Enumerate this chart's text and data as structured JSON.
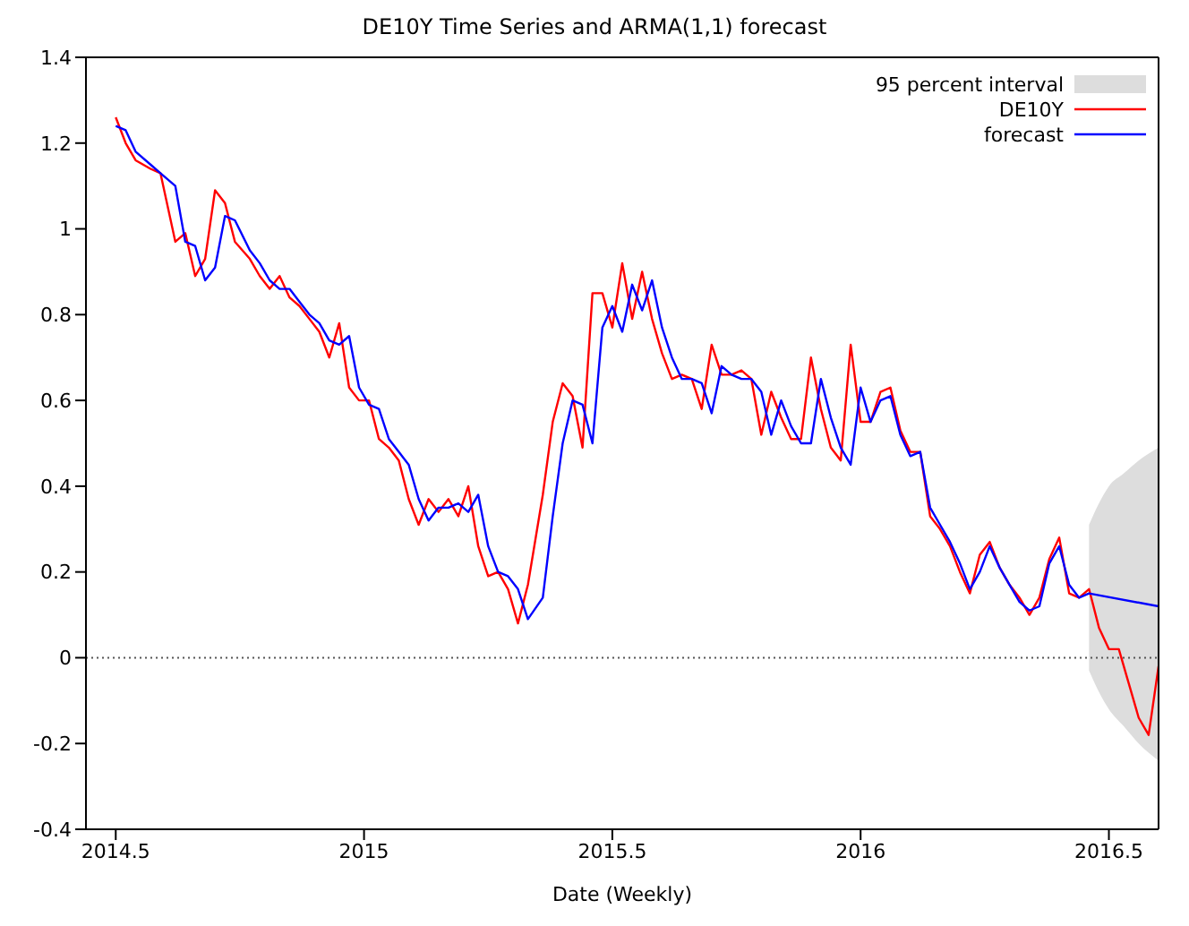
{
  "chart_data": {
    "type": "line",
    "title": "DE10Y Time Series and ARMA(1,1) forecast",
    "xlabel": "Date (Weekly)",
    "xlim": [
      2014.44,
      2016.6
    ],
    "xticks": [
      2014.5,
      2015,
      2015.5,
      2016,
      2016.5
    ],
    "ylim": [
      -0.4,
      1.4
    ],
    "yticks": [
      -0.4,
      -0.2,
      0,
      0.2,
      0.4,
      0.6,
      0.8,
      1,
      1.2,
      1.4
    ],
    "grid": false,
    "legend": "top right",
    "marker": "none",
    "line_style": "solid",
    "ref_lines": [
      {
        "axis": "y",
        "value": 0,
        "color": "#555555",
        "line_style": "dotted"
      }
    ],
    "series": [
      {
        "name": "95 percent interval",
        "type": "area",
        "color": "#dddddd",
        "x": [
          2016.46,
          2016.48,
          2016.5,
          2016.53,
          2016.56,
          2016.6
        ],
        "values": [
          null,
          null,
          null,
          null,
          null,
          null
        ],
        "lower": [
          -0.03,
          -0.08,
          -0.12,
          -0.16,
          -0.2,
          -0.24
        ],
        "upper": [
          0.31,
          0.36,
          0.4,
          0.43,
          0.46,
          0.49
        ]
      },
      {
        "name": "DE10Y",
        "type": "line",
        "color": "#ff0000",
        "x": [
          2014.5,
          2014.52,
          2014.54,
          2014.57,
          2014.59,
          2014.62,
          2014.64,
          2014.66,
          2014.68,
          2014.7,
          2014.72,
          2014.74,
          2014.77,
          2014.79,
          2014.81,
          2014.83,
          2014.85,
          2014.87,
          2014.89,
          2014.91,
          2014.93,
          2014.95,
          2014.97,
          2014.99,
          2015.01,
          2015.03,
          2015.05,
          2015.07,
          2015.09,
          2015.11,
          2015.13,
          2015.15,
          2015.17,
          2015.19,
          2015.21,
          2015.23,
          2015.25,
          2015.27,
          2015.29,
          2015.31,
          2015.33,
          2015.36,
          2015.38,
          2015.4,
          2015.42,
          2015.44,
          2015.46,
          2015.48,
          2015.5,
          2015.52,
          2015.54,
          2015.56,
          2015.58,
          2015.6,
          2015.62,
          2015.64,
          2015.66,
          2015.68,
          2015.7,
          2015.72,
          2015.74,
          2015.76,
          2015.78,
          2015.8,
          2015.82,
          2015.84,
          2015.86,
          2015.88,
          2015.9,
          2015.92,
          2015.94,
          2015.96,
          2015.98,
          2016,
          2016.02,
          2016.04,
          2016.06,
          2016.08,
          2016.1,
          2016.12,
          2016.14,
          2016.16,
          2016.18,
          2016.2,
          2016.22,
          2016.24,
          2016.26,
          2016.28,
          2016.3,
          2016.32,
          2016.34,
          2016.36,
          2016.38,
          2016.4,
          2016.42,
          2016.44,
          2016.46,
          2016.48,
          2016.5,
          2016.52,
          2016.54,
          2016.56,
          2016.58,
          2016.6
        ],
        "values": [
          1.26,
          1.2,
          1.16,
          1.14,
          1.13,
          0.97,
          0.99,
          0.89,
          0.93,
          1.09,
          1.06,
          0.97,
          0.93,
          0.89,
          0.86,
          0.89,
          0.84,
          0.82,
          0.79,
          0.76,
          0.7,
          0.78,
          0.63,
          0.6,
          0.6,
          0.51,
          0.49,
          0.46,
          0.37,
          0.31,
          0.37,
          0.34,
          0.37,
          0.33,
          0.4,
          0.26,
          0.19,
          0.2,
          0.16,
          0.08,
          0.17,
          0.38,
          0.55,
          0.64,
          0.61,
          0.49,
          0.85,
          0.85,
          0.77,
          0.92,
          0.79,
          0.9,
          0.79,
          0.71,
          0.65,
          0.66,
          0.65,
          0.58,
          0.73,
          0.66,
          0.66,
          0.67,
          0.65,
          0.52,
          0.62,
          0.56,
          0.51,
          0.51,
          0.7,
          0.58,
          0.49,
          0.46,
          0.73,
          0.55,
          0.55,
          0.62,
          0.63,
          0.53,
          0.48,
          0.48,
          0.33,
          0.3,
          0.26,
          0.2,
          0.15,
          0.24,
          0.27,
          0.21,
          0.17,
          0.14,
          0.1,
          0.14,
          0.23,
          0.28,
          0.15,
          0.14,
          0.16,
          0.07,
          0.02,
          0.02,
          -0.06,
          -0.14,
          -0.18,
          -0.02
        ]
      },
      {
        "name": "forecast",
        "type": "line",
        "color": "#0000ff",
        "x": [
          2014.5,
          2014.52,
          2014.54,
          2014.57,
          2014.59,
          2014.62,
          2014.64,
          2014.66,
          2014.68,
          2014.7,
          2014.72,
          2014.74,
          2014.77,
          2014.79,
          2014.81,
          2014.83,
          2014.85,
          2014.87,
          2014.89,
          2014.91,
          2014.93,
          2014.95,
          2014.97,
          2014.99,
          2015.01,
          2015.03,
          2015.05,
          2015.07,
          2015.09,
          2015.11,
          2015.13,
          2015.15,
          2015.17,
          2015.19,
          2015.21,
          2015.23,
          2015.25,
          2015.27,
          2015.29,
          2015.31,
          2015.33,
          2015.36,
          2015.38,
          2015.4,
          2015.42,
          2015.44,
          2015.46,
          2015.48,
          2015.5,
          2015.52,
          2015.54,
          2015.56,
          2015.58,
          2015.6,
          2015.62,
          2015.64,
          2015.66,
          2015.68,
          2015.7,
          2015.72,
          2015.74,
          2015.76,
          2015.78,
          2015.8,
          2015.82,
          2015.84,
          2015.86,
          2015.88,
          2015.9,
          2015.92,
          2015.94,
          2015.96,
          2015.98,
          2016,
          2016.02,
          2016.04,
          2016.06,
          2016.08,
          2016.1,
          2016.12,
          2016.14,
          2016.16,
          2016.18,
          2016.2,
          2016.22,
          2016.24,
          2016.26,
          2016.28,
          2016.3,
          2016.32,
          2016.34,
          2016.36,
          2016.38,
          2016.4,
          2016.42,
          2016.44,
          2016.46,
          2016.6
        ],
        "values": [
          1.24,
          1.23,
          1.18,
          1.15,
          1.13,
          1.1,
          0.97,
          0.96,
          0.88,
          0.91,
          1.03,
          1.02,
          0.95,
          0.92,
          0.88,
          0.86,
          0.86,
          0.83,
          0.8,
          0.78,
          0.74,
          0.73,
          0.75,
          0.63,
          0.59,
          0.58,
          0.51,
          0.48,
          0.45,
          0.37,
          0.32,
          0.35,
          0.35,
          0.36,
          0.34,
          0.38,
          0.26,
          0.2,
          0.19,
          0.16,
          0.09,
          0.14,
          0.33,
          0.5,
          0.6,
          0.59,
          0.5,
          0.77,
          0.82,
          0.76,
          0.87,
          0.81,
          0.88,
          0.77,
          0.7,
          0.65,
          0.65,
          0.64,
          0.57,
          0.68,
          0.66,
          0.65,
          0.65,
          0.62,
          0.52,
          0.6,
          0.54,
          0.5,
          0.5,
          0.65,
          0.56,
          0.49,
          0.45,
          0.63,
          0.55,
          0.6,
          0.61,
          0.52,
          0.47,
          0.48,
          0.35,
          0.31,
          0.27,
          0.22,
          0.16,
          0.2,
          0.26,
          0.21,
          0.17,
          0.13,
          0.11,
          0.12,
          0.22,
          0.26,
          0.17,
          0.14,
          0.15,
          0.12
        ]
      }
    ]
  }
}
